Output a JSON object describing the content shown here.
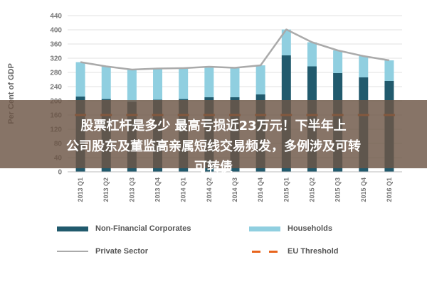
{
  "chart_data": {
    "type": "bar",
    "stacked": true,
    "ylabel": "Per Cent of GDP",
    "ylim": [
      0,
      440
    ],
    "yticks": [
      0,
      40,
      80,
      120,
      160,
      200,
      240,
      280,
      320,
      360,
      400,
      440
    ],
    "grid": true,
    "legend_position": "bottom",
    "categories": [
      "2013 Q1",
      "2013 Q2",
      "2013 Q3",
      "2013 Q4",
      "2014 Q1",
      "2014 Q2",
      "2014 Q3",
      "2014 Q4",
      "2015 Q1",
      "2015 Q2",
      "2015 Q3",
      "2015 Q4",
      "2016 Q1"
    ],
    "series": [
      {
        "name": "Non-Financial Corporates",
        "kind": "bar",
        "color": "#215a6d",
        "values": [
          212,
          205,
          197,
          203,
          205,
          210,
          210,
          218,
          328,
          297,
          278,
          266,
          256
        ]
      },
      {
        "name": "Households",
        "kind": "bar",
        "color": "#90cfe0",
        "values": [
          97,
          92,
          91,
          88,
          87,
          86,
          83,
          82,
          73,
          68,
          64,
          60,
          58
        ]
      },
      {
        "name": "Private Sector",
        "kind": "line",
        "color": "#aaaaaa",
        "values": [
          309,
          297,
          288,
          291,
          292,
          296,
          293,
          300,
          401,
          365,
          342,
          326,
          314
        ]
      },
      {
        "name": "EU Threshold",
        "kind": "dash",
        "color": "#e8641d",
        "values": [
          160,
          160,
          160,
          160,
          160,
          160,
          160,
          160,
          160,
          160,
          160,
          160,
          160
        ]
      }
    ]
  },
  "legend": {
    "items": [
      {
        "label": "Non-Financial Corporates",
        "type": "bar",
        "color": "#215a6d"
      },
      {
        "label": "Households",
        "type": "bar",
        "color": "#90cfe0"
      },
      {
        "label": "Private Sector",
        "type": "line",
        "color": "#aaaaaa"
      },
      {
        "label": "EU Threshold",
        "type": "dash",
        "color": "#e8641d"
      }
    ]
  },
  "overlay": {
    "background": "#6c5646",
    "line1": "股票杠杆是多少 最高亏损近23万元！下半年上",
    "line2": "公司股东及董监高亲属短线交易频发，多例涉及可转",
    "line3": "可转债"
  }
}
